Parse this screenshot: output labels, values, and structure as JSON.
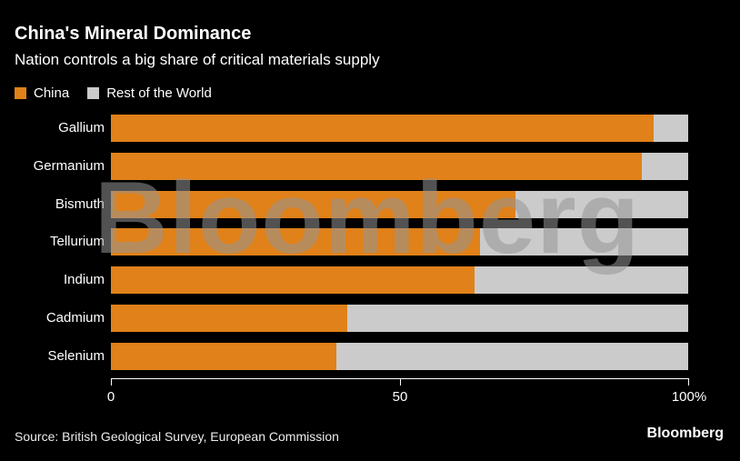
{
  "header": {
    "title": "China's Mineral Dominance",
    "subtitle": "Nation controls a big share of critical materials supply"
  },
  "chart_data": {
    "type": "bar",
    "orientation": "horizontal",
    "stacked": true,
    "unit": "%",
    "title": "China's Mineral Dominance",
    "subtitle": "Nation controls a big share of critical materials supply",
    "categories": [
      "Gallium",
      "Germanium",
      "Bismuth",
      "Tellurium",
      "Indium",
      "Cadmium",
      "Selenium"
    ],
    "series": [
      {
        "name": "China",
        "color": "#E08119",
        "values": [
          94,
          92,
          70,
          64,
          63,
          41,
          39
        ]
      },
      {
        "name": "Rest of the World",
        "color": "#CBCBCB",
        "values": [
          6,
          8,
          30,
          36,
          37,
          59,
          61
        ]
      }
    ],
    "xlim": [
      0,
      100
    ],
    "x_ticks": [
      "0",
      "50",
      "100%"
    ],
    "legend_position": "top-left",
    "grid": false
  },
  "watermark": "Bloomberg",
  "footer": {
    "source": "Source: British Geological Survey, European Commission",
    "logo": "Bloomberg"
  }
}
